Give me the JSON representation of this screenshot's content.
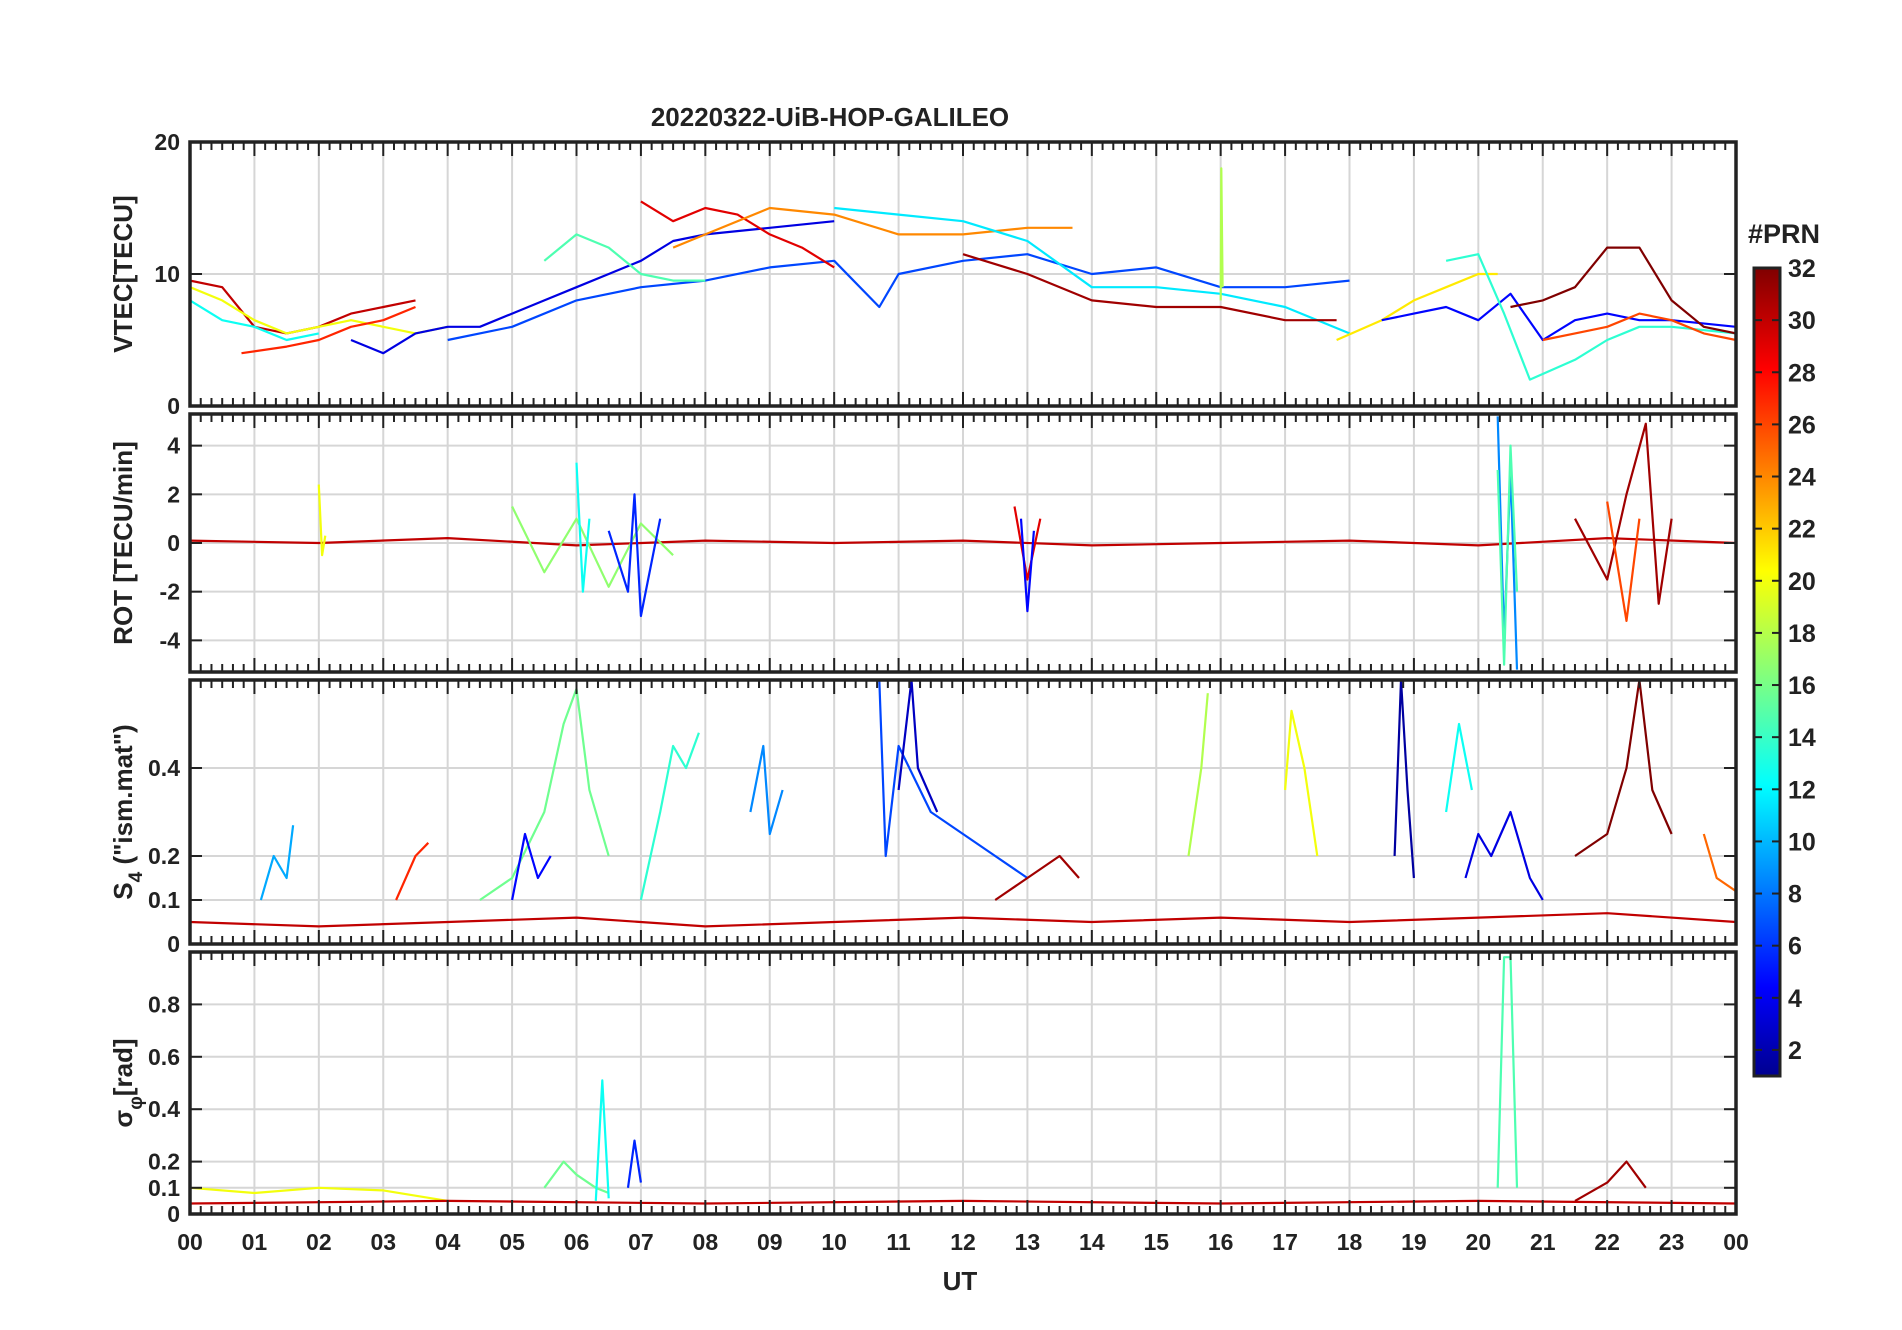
{
  "chart_data": {
    "type": "line",
    "title": "20220322-UiB-HOP-GALILEO",
    "xlabel": "UT",
    "x_ticks": [
      "00",
      "01",
      "02",
      "03",
      "04",
      "05",
      "06",
      "07",
      "08",
      "09",
      "10",
      "11",
      "12",
      "13",
      "14",
      "15",
      "16",
      "17",
      "18",
      "19",
      "20",
      "21",
      "22",
      "23",
      "00"
    ],
    "xlim_hours": [
      0,
      24
    ],
    "colorbar": {
      "title": "#PRN",
      "range": [
        1,
        32
      ],
      "ticks": [
        "2",
        "4",
        "6",
        "8",
        "10",
        "12",
        "14",
        "16",
        "18",
        "20",
        "22",
        "24",
        "26",
        "28",
        "30",
        "32"
      ],
      "colormap": "jet"
    },
    "panels": [
      {
        "id": "vtec",
        "ylabel": "VTEC[TECU]",
        "ylim": [
          0,
          20
        ],
        "y_ticks": [
          "0",
          "10",
          "20"
        ],
        "y_tick_values": [
          0,
          10,
          20
        ],
        "series": [
          {
            "prn": 30,
            "x": [
              0,
              0.5,
              1,
              1.5,
              2,
              2.5,
              3,
              3.5
            ],
            "y": [
              9.5,
              9,
              6,
              5.5,
              6,
              7,
              7.5,
              8
            ]
          },
          {
            "prn": 20,
            "x": [
              0,
              0.5,
              1,
              1.5,
              2,
              2.5,
              3,
              3.5,
              4
            ],
            "y": [
              9,
              8,
              6.5,
              5.5,
              6,
              6.5,
              6,
              5.5,
              6
            ]
          },
          {
            "prn": 13,
            "x": [
              0,
              0.5,
              1,
              1.5,
              2
            ],
            "y": [
              8,
              6.5,
              6,
              5,
              5.5
            ]
          },
          {
            "prn": 27,
            "x": [
              0.8,
              1.5,
              2,
              2.5,
              3,
              3.5
            ],
            "y": [
              4,
              4.5,
              5,
              6,
              6.5,
              7.5
            ]
          },
          {
            "prn": 4,
            "x": [
              2.5,
              3,
              3.5,
              4,
              4.5,
              5,
              5.5,
              6,
              6.5,
              7,
              7.5,
              8,
              9,
              10
            ],
            "y": [
              5,
              4,
              5.5,
              6,
              6,
              7,
              8,
              9,
              10,
              11,
              12.5,
              13,
              13.5,
              14
            ]
          },
          {
            "prn": 7,
            "x": [
              4,
              5,
              6,
              7,
              8,
              9,
              10,
              10.7,
              11,
              12,
              13,
              14,
              15,
              16,
              17,
              18
            ],
            "y": [
              5,
              6,
              8,
              9,
              9.5,
              10.5,
              11,
              7.5,
              10,
              11,
              11.5,
              10,
              10.5,
              9,
              9,
              9.5
            ]
          },
          {
            "prn": 15,
            "x": [
              5.5,
              6,
              6.5,
              7,
              7.5,
              8
            ],
            "y": [
              11,
              13,
              12,
              10,
              9.5,
              9.5
            ]
          },
          {
            "prn": 29,
            "x": [
              7,
              7.5,
              8,
              8.5,
              9,
              9.5,
              10
            ],
            "y": [
              15.5,
              14,
              15,
              14.5,
              13,
              12,
              10.5
            ]
          },
          {
            "prn": 24,
            "x": [
              7.5,
              8,
              9,
              10,
              11,
              12,
              13,
              13.7
            ],
            "y": [
              12,
              13,
              15,
              14.5,
              13,
              13,
              13.5,
              13.5
            ]
          },
          {
            "prn": 12,
            "x": [
              10,
              11,
              12,
              13,
              14,
              15,
              16,
              17,
              18
            ],
            "y": [
              15,
              14.5,
              14,
              12.5,
              9,
              9,
              8.5,
              7.5,
              5.5
            ]
          },
          {
            "prn": 31,
            "x": [
              12,
              13,
              14,
              15,
              16,
              17,
              17.8
            ],
            "y": [
              11.5,
              10,
              8,
              7.5,
              7.5,
              6.5,
              6.5
            ]
          },
          {
            "prn": 18,
            "x": [
              16,
              16.01,
              16.03
            ],
            "y": [
              8,
              18,
              9
            ]
          },
          {
            "prn": 21,
            "x": [
              17.8,
              18.5,
              19,
              19.5,
              20,
              20.3
            ],
            "y": [
              5,
              6.5,
              8,
              9,
              10,
              10
            ]
          },
          {
            "prn": 5,
            "x": [
              18.5,
              19,
              19.5,
              20,
              20.5,
              21,
              21.5,
              22,
              22.5,
              23,
              24
            ],
            "y": [
              6.5,
              7,
              7.5,
              6.5,
              8.5,
              5,
              6.5,
              7,
              6.5,
              6.5,
              6
            ]
          },
          {
            "prn": 14,
            "x": [
              19.5,
              20,
              20.4,
              20.8,
              21.5,
              22,
              22.5,
              23,
              24
            ],
            "y": [
              11,
              11.5,
              7,
              2,
              3.5,
              5,
              6,
              6,
              5.5
            ]
          },
          {
            "prn": 32,
            "x": [
              20.5,
              21,
              21.5,
              22,
              22.5,
              23,
              23.5,
              24
            ],
            "y": [
              7.5,
              8,
              9,
              12,
              12,
              8,
              6,
              5.5
            ]
          },
          {
            "prn": 26,
            "x": [
              21,
              21.5,
              22,
              22.5,
              23,
              23.5,
              24
            ],
            "y": [
              5,
              5.5,
              6,
              7,
              6.5,
              5.5,
              5
            ]
          }
        ]
      },
      {
        "id": "rot",
        "ylabel": "ROT [TECU/min]",
        "ylim": [
          -5.3,
          5.3
        ],
        "y_ticks": [
          "-4",
          "-2",
          "0",
          "2",
          "4"
        ],
        "y_tick_values": [
          -4,
          -2,
          0,
          2,
          4
        ],
        "series": [
          {
            "prn": 30,
            "x": [
              0,
              2,
              4,
              6,
              8,
              10,
              12,
              14,
              16,
              18,
              20,
              22,
              24
            ],
            "y": [
              0.1,
              0,
              0.2,
              -0.1,
              0.1,
              0,
              0.1,
              -0.1,
              0,
              0.1,
              -0.1,
              0.2,
              0
            ]
          },
          {
            "prn": 17,
            "x": [
              5,
              5.5,
              6,
              6.5,
              7,
              7.5
            ],
            "y": [
              1.5,
              -1.2,
              1,
              -1.8,
              0.8,
              -0.5
            ]
          },
          {
            "prn": 6,
            "x": [
              6.5,
              6.8,
              6.9,
              7,
              7.3
            ],
            "y": [
              0.5,
              -2,
              2,
              -3,
              1
            ]
          },
          {
            "prn": 13,
            "x": [
              6,
              6.1,
              6.2
            ],
            "y": [
              3.3,
              -2,
              1
            ]
          },
          {
            "prn": 20,
            "x": [
              2,
              2.05,
              2.1
            ],
            "y": [
              2.4,
              -0.5,
              0.3
            ]
          },
          {
            "prn": 29,
            "x": [
              12.8,
              13,
              13.2
            ],
            "y": [
              1.5,
              -1.5,
              1
            ]
          },
          {
            "prn": 5,
            "x": [
              12.9,
              13,
              13.1
            ],
            "y": [
              1,
              -2.8,
              0.5
            ]
          },
          {
            "prn": 9,
            "x": [
              20.3,
              20.4,
              20.5,
              20.6
            ],
            "y": [
              5.2,
              -4,
              3,
              -5.2
            ]
          },
          {
            "prn": 15,
            "x": [
              20.3,
              20.4,
              20.5,
              20.6
            ],
            "y": [
              3,
              -5,
              4,
              -2
            ]
          },
          {
            "prn": 31,
            "x": [
              21.5,
              22,
              22.3,
              22.6,
              22.8,
              23
            ],
            "y": [
              1,
              -1.5,
              2,
              4.9,
              -2.5,
              1
            ]
          },
          {
            "prn": 26,
            "x": [
              22,
              22.3,
              22.5
            ],
            "y": [
              1.7,
              -3.2,
              1
            ]
          }
        ]
      },
      {
        "id": "s4",
        "ylabel": "S4 (\"ism.mat\")",
        "ylabel_main": "S",
        "ylabel_sub": "4",
        "ylabel_rest": " (\"ism.mat\")",
        "ylim": [
          0,
          0.6
        ],
        "y_ticks": [
          "0",
          "0.1",
          "0.2",
          "0.4"
        ],
        "y_tick_values": [
          0,
          0.1,
          0.2,
          0.4
        ],
        "series": [
          {
            "prn": 30,
            "x": [
              0,
              2,
              4,
              6,
              8,
              10,
              12,
              14,
              16,
              18,
              20,
              22,
              24
            ],
            "y": [
              0.05,
              0.04,
              0.05,
              0.06,
              0.04,
              0.05,
              0.06,
              0.05,
              0.06,
              0.05,
              0.06,
              0.07,
              0.05
            ]
          },
          {
            "prn": 10,
            "x": [
              1.1,
              1.3,
              1.5,
              1.6
            ],
            "y": [
              0.1,
              0.2,
              0.15,
              0.27
            ]
          },
          {
            "prn": 27,
            "x": [
              3.2,
              3.5,
              3.7
            ],
            "y": [
              0.1,
              0.2,
              0.23
            ]
          },
          {
            "prn": 16,
            "x": [
              4.5,
              5,
              5.5,
              5.8,
              6,
              6.2,
              6.5
            ],
            "y": [
              0.1,
              0.15,
              0.3,
              0.5,
              0.58,
              0.35,
              0.2
            ]
          },
          {
            "prn": 5,
            "x": [
              5,
              5.2,
              5.4,
              5.6
            ],
            "y": [
              0.1,
              0.25,
              0.15,
              0.2
            ]
          },
          {
            "prn": 14,
            "x": [
              7,
              7.3,
              7.5,
              7.7,
              7.9
            ],
            "y": [
              0.1,
              0.3,
              0.45,
              0.4,
              0.48
            ]
          },
          {
            "prn": 9,
            "x": [
              8.7,
              8.9,
              9,
              9.2
            ],
            "y": [
              0.3,
              0.45,
              0.25,
              0.35
            ]
          },
          {
            "prn": 7,
            "x": [
              10.7,
              10.8,
              11,
              11.5,
              12,
              12.5,
              13
            ],
            "y": [
              0.6,
              0.2,
              0.45,
              0.3,
              0.25,
              0.2,
              0.15
            ]
          },
          {
            "prn": 3,
            "x": [
              11,
              11.2,
              11.3,
              11.6
            ],
            "y": [
              0.35,
              0.6,
              0.4,
              0.3
            ]
          },
          {
            "prn": 31,
            "x": [
              12.5,
              13,
              13.5,
              13.8
            ],
            "y": [
              0.1,
              0.15,
              0.2,
              0.15
            ]
          },
          {
            "prn": 18,
            "x": [
              15.5,
              15.7,
              15.8
            ],
            "y": [
              0.2,
              0.4,
              0.57
            ]
          },
          {
            "prn": 20,
            "x": [
              17,
              17.1,
              17.3,
              17.5
            ],
            "y": [
              0.35,
              0.53,
              0.4,
              0.2
            ]
          },
          {
            "prn": 2,
            "x": [
              18.7,
              18.8,
              18.9,
              19
            ],
            "y": [
              0.2,
              0.6,
              0.35,
              0.15
            ]
          },
          {
            "prn": 13,
            "x": [
              19.5,
              19.7,
              19.9
            ],
            "y": [
              0.3,
              0.5,
              0.35
            ]
          },
          {
            "prn": 4,
            "x": [
              19.8,
              20,
              20.2,
              20.5,
              20.8,
              21
            ],
            "y": [
              0.15,
              0.25,
              0.2,
              0.3,
              0.15,
              0.1
            ]
          },
          {
            "prn": 32,
            "x": [
              21.5,
              22,
              22.3,
              22.5,
              22.7,
              23
            ],
            "y": [
              0.2,
              0.25,
              0.4,
              0.6,
              0.35,
              0.25
            ]
          },
          {
            "prn": 25,
            "x": [
              23.5,
              23.7,
              24
            ],
            "y": [
              0.25,
              0.15,
              0.12
            ]
          }
        ]
      },
      {
        "id": "sigphi",
        "ylabel": "σφ[rad]",
        "ylabel_main": "σ",
        "ylabel_sub": "φ",
        "ylabel_rest": "[rad]",
        "ylim": [
          0,
          1
        ],
        "y_ticks": [
          "0",
          "0.1",
          "0.2",
          "0.4",
          "0.6",
          "0.8"
        ],
        "y_tick_values": [
          0,
          0.1,
          0.2,
          0.4,
          0.6,
          0.8
        ],
        "series": [
          {
            "prn": 20,
            "x": [
              0,
              1,
              2,
              3,
              4
            ],
            "y": [
              0.1,
              0.08,
              0.1,
              0.09,
              0.05
            ]
          },
          {
            "prn": 30,
            "x": [
              0,
              4,
              8,
              12,
              16,
              20,
              24
            ],
            "y": [
              0.04,
              0.05,
              0.04,
              0.05,
              0.04,
              0.05,
              0.04
            ]
          },
          {
            "prn": 16,
            "x": [
              5.5,
              5.8,
              6,
              6.3,
              6.5
            ],
            "y": [
              0.1,
              0.2,
              0.15,
              0.1,
              0.08
            ]
          },
          {
            "prn": 13,
            "x": [
              6.3,
              6.4,
              6.5
            ],
            "y": [
              0.05,
              0.51,
              0.06
            ]
          },
          {
            "prn": 6,
            "x": [
              6.8,
              6.9,
              7
            ],
            "y": [
              0.1,
              0.28,
              0.12
            ]
          },
          {
            "prn": 15,
            "x": [
              20.3,
              20.4,
              20.5,
              20.6
            ],
            "y": [
              0.1,
              0.98,
              0.98,
              0.1
            ]
          },
          {
            "prn": 31,
            "x": [
              21.5,
              22,
              22.3,
              22.6
            ],
            "y": [
              0.05,
              0.12,
              0.2,
              0.1
            ]
          }
        ]
      }
    ]
  }
}
